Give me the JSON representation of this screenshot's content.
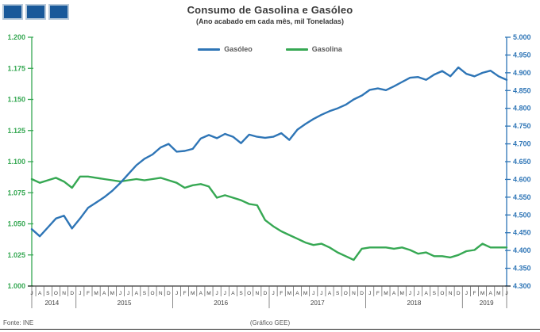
{
  "header": {
    "title": "Consumo de Gasolina e Gasóleo",
    "subtitle": "(Ano acabado em cada mês, mil Toneladas)",
    "logo": {
      "squares": 3,
      "fill": "#19599a",
      "border": "#b7c9da"
    }
  },
  "legend": [
    {
      "label": "Gasóleo",
      "color": "#2e75b6"
    },
    {
      "label": "Gasolina",
      "color": "#36a853"
    }
  ],
  "footer": {
    "source": "Fonte: INE",
    "note": "(Gráfico GEE)"
  },
  "chart_data": {
    "type": "line",
    "title": "Consumo de Gasolina e Gasóleo",
    "subtitle": "(Ano acabado em cada mês, mil Toneladas)",
    "grid": false,
    "legend_position": "top",
    "x_months": [
      "J",
      "A",
      "S",
      "O",
      "N",
      "D",
      "J",
      "F",
      "M",
      "A",
      "M",
      "J",
      "J",
      "A",
      "S",
      "O",
      "N",
      "D",
      "J",
      "F",
      "M",
      "A",
      "M",
      "J",
      "J",
      "A",
      "S",
      "O",
      "N",
      "D",
      "J",
      "F",
      "M",
      "A",
      "M",
      "J",
      "J",
      "A",
      "S",
      "O",
      "N",
      "D",
      "J",
      "F",
      "M",
      "A",
      "M",
      "J",
      "J",
      "A",
      "S",
      "O",
      "N",
      "D",
      "J",
      "F",
      "M",
      "A",
      "M",
      "J"
    ],
    "x_years": [
      {
        "label": "2014",
        "span": 6
      },
      {
        "label": "2015",
        "span": 12
      },
      {
        "label": "2016",
        "span": 12
      },
      {
        "label": "2017",
        "span": 12
      },
      {
        "label": "2018",
        "span": 12
      },
      {
        "label": "2019",
        "span": 6
      }
    ],
    "left_axis": {
      "min": 1000,
      "max": 1200,
      "step": 25,
      "color": "#36a853",
      "tick_labels": [
        "1.200",
        "1.175",
        "1.150",
        "1.125",
        "1.100",
        "1.075",
        "1.050",
        "1.025",
        "1.000"
      ]
    },
    "right_axis": {
      "min": 4300,
      "max": 5000,
      "step": 50,
      "color": "#2e75b6",
      "tick_labels": [
        "5.000",
        "4.950",
        "4.900",
        "4.850",
        "4.800",
        "4.750",
        "4.700",
        "4.650",
        "4.600",
        "4.550",
        "4.500",
        "4.450",
        "4.400",
        "4.350",
        "4.300"
      ]
    },
    "series": [
      {
        "name": "Gasóleo",
        "axis": "right",
        "color": "#2e75b6",
        "values": [
          4460,
          4440,
          4465,
          4490,
          4498,
          4462,
          4490,
          4520,
          4535,
          4550,
          4568,
          4590,
          4615,
          4640,
          4658,
          4670,
          4690,
          4700,
          4678,
          4680,
          4686,
          4715,
          4725,
          4716,
          4728,
          4720,
          4702,
          4726,
          4720,
          4717,
          4720,
          4730,
          4711,
          4740,
          4756,
          4770,
          4782,
          4792,
          4800,
          4810,
          4825,
          4836,
          4852,
          4856,
          4851,
          4862,
          4874,
          4886,
          4888,
          4880,
          4895,
          4905,
          4890,
          4915,
          4897,
          4890,
          4900,
          4906,
          4890,
          4880
        ]
      },
      {
        "name": "Gasolina",
        "axis": "left",
        "color": "#36a853",
        "values": [
          1086,
          1083,
          1085,
          1087,
          1084,
          1079,
          1088,
          1088,
          1087,
          1086,
          1085,
          1084,
          1085,
          1086,
          1085,
          1086,
          1087,
          1085,
          1083,
          1079,
          1081,
          1082,
          1080,
          1071,
          1073,
          1071,
          1069,
          1066,
          1065,
          1053,
          1048,
          1044,
          1041,
          1038,
          1035,
          1033,
          1034,
          1031,
          1027,
          1024,
          1021,
          1030,
          1031,
          1031,
          1031,
          1030,
          1031,
          1029,
          1026,
          1027,
          1024,
          1024,
          1023,
          1025,
          1028,
          1029,
          1034,
          1031,
          1031,
          1031
        ]
      }
    ]
  }
}
